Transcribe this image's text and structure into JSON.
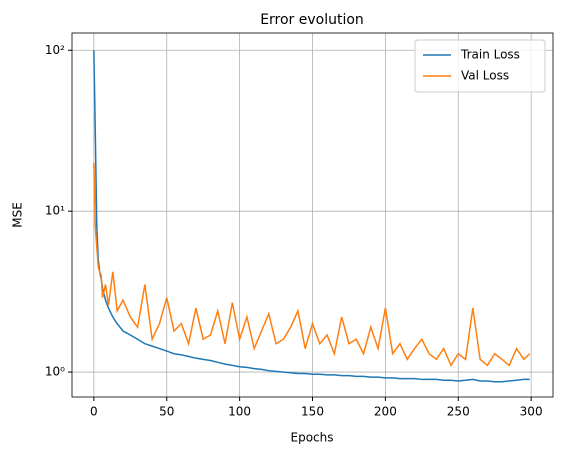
{
  "chart_data": {
    "type": "line",
    "title": "Error evolution",
    "x_label": "Epochs",
    "y_label": "MSE",
    "x": [
      0,
      1,
      2,
      3,
      4,
      5,
      6,
      8,
      10,
      13,
      16,
      20,
      25,
      30,
      35,
      40,
      45,
      50,
      55,
      60,
      65,
      70,
      75,
      80,
      85,
      90,
      95,
      100,
      105,
      110,
      115,
      120,
      125,
      130,
      135,
      140,
      145,
      150,
      155,
      160,
      165,
      170,
      175,
      180,
      185,
      190,
      195,
      200,
      205,
      210,
      215,
      220,
      225,
      230,
      235,
      240,
      245,
      250,
      255,
      260,
      265,
      270,
      275,
      280,
      285,
      290,
      295,
      299
    ],
    "series": [
      {
        "name": "Train Loss",
        "color": "#1f77b4",
        "values": [
          100,
          30,
          8,
          5,
          4.2,
          3.8,
          3.3,
          2.8,
          2.5,
          2.2,
          2.0,
          1.8,
          1.7,
          1.6,
          1.5,
          1.45,
          1.4,
          1.35,
          1.3,
          1.28,
          1.25,
          1.22,
          1.2,
          1.18,
          1.15,
          1.12,
          1.1,
          1.08,
          1.07,
          1.05,
          1.04,
          1.02,
          1.01,
          1.0,
          0.99,
          0.98,
          0.98,
          0.97,
          0.97,
          0.96,
          0.96,
          0.95,
          0.95,
          0.94,
          0.94,
          0.93,
          0.93,
          0.92,
          0.92,
          0.91,
          0.91,
          0.91,
          0.9,
          0.9,
          0.9,
          0.89,
          0.89,
          0.88,
          0.89,
          0.9,
          0.88,
          0.88,
          0.87,
          0.87,
          0.88,
          0.89,
          0.9,
          0.9
        ]
      },
      {
        "name": "Val Loss",
        "color": "#ff7f0e",
        "values": [
          20,
          8,
          6,
          4.5,
          4.2,
          4.0,
          2.9,
          3.5,
          2.6,
          4.2,
          2.4,
          2.8,
          2.2,
          1.9,
          3.5,
          1.6,
          2.0,
          2.9,
          1.8,
          2.0,
          1.5,
          2.5,
          1.6,
          1.7,
          2.4,
          1.5,
          2.7,
          1.6,
          2.2,
          1.4,
          1.8,
          2.3,
          1.5,
          1.6,
          1.9,
          2.4,
          1.4,
          2.0,
          1.5,
          1.7,
          1.3,
          2.2,
          1.5,
          1.6,
          1.3,
          1.9,
          1.4,
          2.5,
          1.3,
          1.5,
          1.2,
          1.4,
          1.6,
          1.3,
          1.2,
          1.4,
          1.1,
          1.3,
          1.2,
          2.5,
          1.2,
          1.1,
          1.3,
          1.2,
          1.1,
          1.4,
          1.2,
          1.3
        ]
      }
    ],
    "xlim": [
      -15,
      315
    ],
    "xticks": [
      0,
      50,
      100,
      150,
      200,
      250,
      300
    ],
    "ylim": [
      0.7,
      128
    ],
    "log_y": true,
    "yticks": [
      {
        "value": 1,
        "label": "10⁰"
      },
      {
        "value": 10,
        "label": "10¹"
      },
      {
        "value": 100,
        "label": "10²"
      }
    ],
    "grid": true,
    "legend": "upper right"
  }
}
